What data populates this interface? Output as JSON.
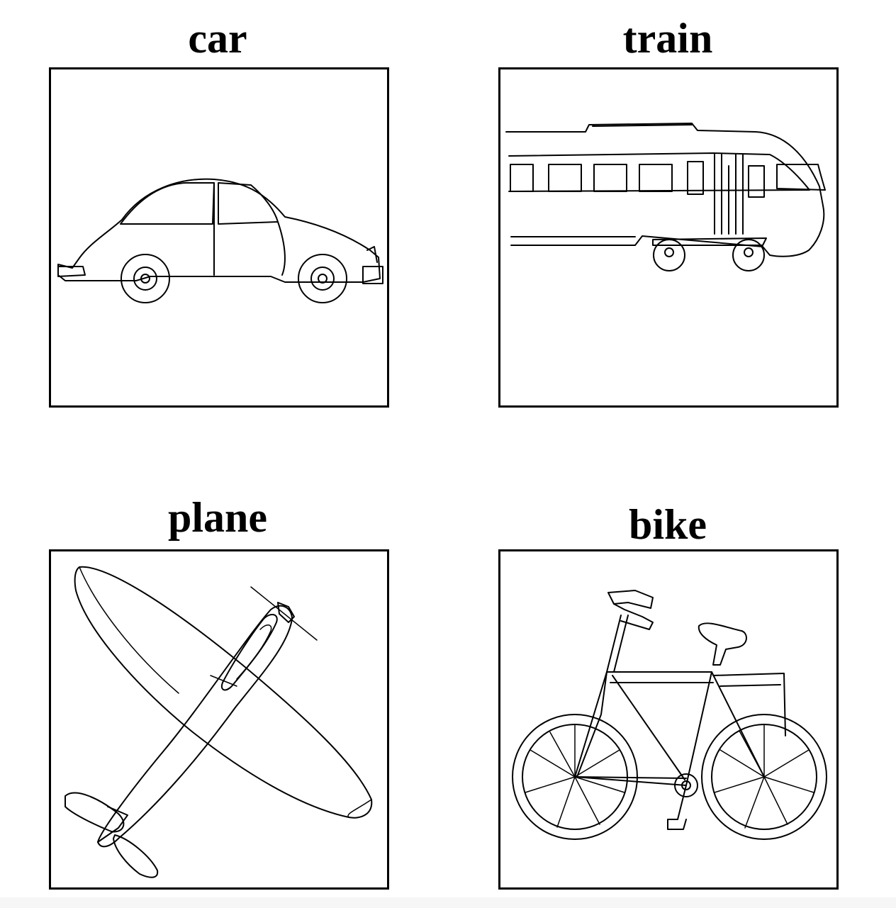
{
  "cards": [
    {
      "label": "car",
      "icon": "car-icon"
    },
    {
      "label": "train",
      "icon": "train-icon"
    },
    {
      "label": "plane",
      "icon": "plane-icon"
    },
    {
      "label": "bike",
      "icon": "bike-icon"
    }
  ]
}
